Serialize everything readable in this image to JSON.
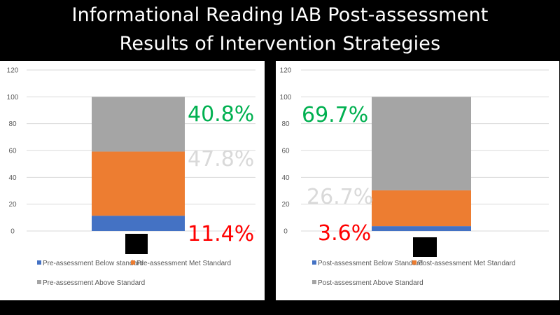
{
  "title": {
    "line1": "Informational Reading IAB Post-assessment",
    "line2": "Results of Intervention Strategies"
  },
  "colors": {
    "below": "#4472C4",
    "met": "#ED7D31",
    "above": "#A5A5A5",
    "label_green": "#00B050",
    "label_gray": "#D9D9D9",
    "label_red": "#FF0000"
  },
  "chart_data": [
    {
      "type": "bar",
      "stacked": true,
      "categories": [
        ""
      ],
      "ylim": [
        0,
        120
      ],
      "yticks": [
        0,
        20,
        40,
        60,
        80,
        100,
        120
      ],
      "grid": true,
      "legend_position": "bottom",
      "series": [
        {
          "name": "Pre-assessment Below standard",
          "values": [
            11.4
          ],
          "color_key": "below"
        },
        {
          "name": "Pre-assessment Met Standard",
          "values": [
            47.8
          ],
          "color_key": "met"
        },
        {
          "name": "Pre-assessment Above Standard",
          "values": [
            40.8
          ],
          "color_key": "above"
        }
      ],
      "annotations": [
        {
          "text": "40.8%",
          "series": 2,
          "color_key": "label_green"
        },
        {
          "text": "47.8%",
          "series": 1,
          "color_key": "label_gray"
        },
        {
          "text": "11.4%",
          "series": 0,
          "color_key": "label_red"
        }
      ]
    },
    {
      "type": "bar",
      "stacked": true,
      "categories": [
        ""
      ],
      "ylim": [
        0,
        120
      ],
      "yticks": [
        0,
        20,
        40,
        60,
        80,
        100,
        120
      ],
      "grid": true,
      "legend_position": "bottom",
      "series": [
        {
          "name": "Post-assessment Below Standard",
          "values": [
            3.6
          ],
          "color_key": "below"
        },
        {
          "name": "Post-assessment Met Standard",
          "values": [
            26.7
          ],
          "color_key": "met"
        },
        {
          "name": "Post-assessment Above Standard",
          "values": [
            69.7
          ],
          "color_key": "above"
        }
      ],
      "annotations": [
        {
          "text": "69.7%",
          "series": 2,
          "color_key": "label_green"
        },
        {
          "text": "26.7%",
          "series": 1,
          "color_key": "label_gray"
        },
        {
          "text": "3.6%",
          "series": 0,
          "color_key": "label_red"
        }
      ]
    }
  ]
}
